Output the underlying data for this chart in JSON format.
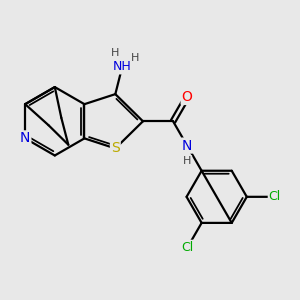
{
  "bg_color": "#e8e8e8",
  "bond_color": "#000000",
  "bond_width": 1.6,
  "atom_colors": {
    "N": "#0000dd",
    "S": "#bbaa00",
    "O": "#ff0000",
    "Cl": "#00aa00",
    "C": "#000000",
    "H": "#444444"
  },
  "font_size": 9,
  "figsize": [
    3.0,
    3.0
  ],
  "dpi": 100
}
